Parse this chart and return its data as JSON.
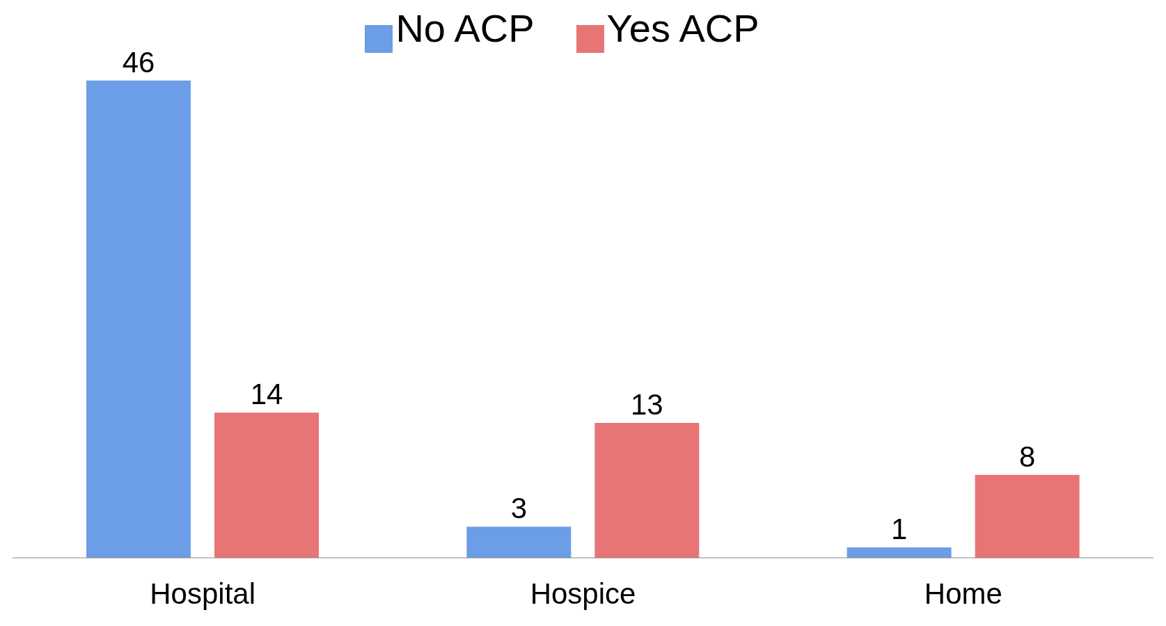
{
  "chart_data": {
    "type": "bar",
    "categories": [
      "Hospital",
      "Hospice",
      "Home"
    ],
    "series": [
      {
        "name": "No ACP",
        "color": "#6b9ee6",
        "values": [
          46,
          3,
          1
        ]
      },
      {
        "name": "Yes ACP",
        "color": "#e87575",
        "values": [
          14,
          13,
          8
        ]
      }
    ],
    "data_labels": true,
    "legend": "top",
    "grid": false
  }
}
